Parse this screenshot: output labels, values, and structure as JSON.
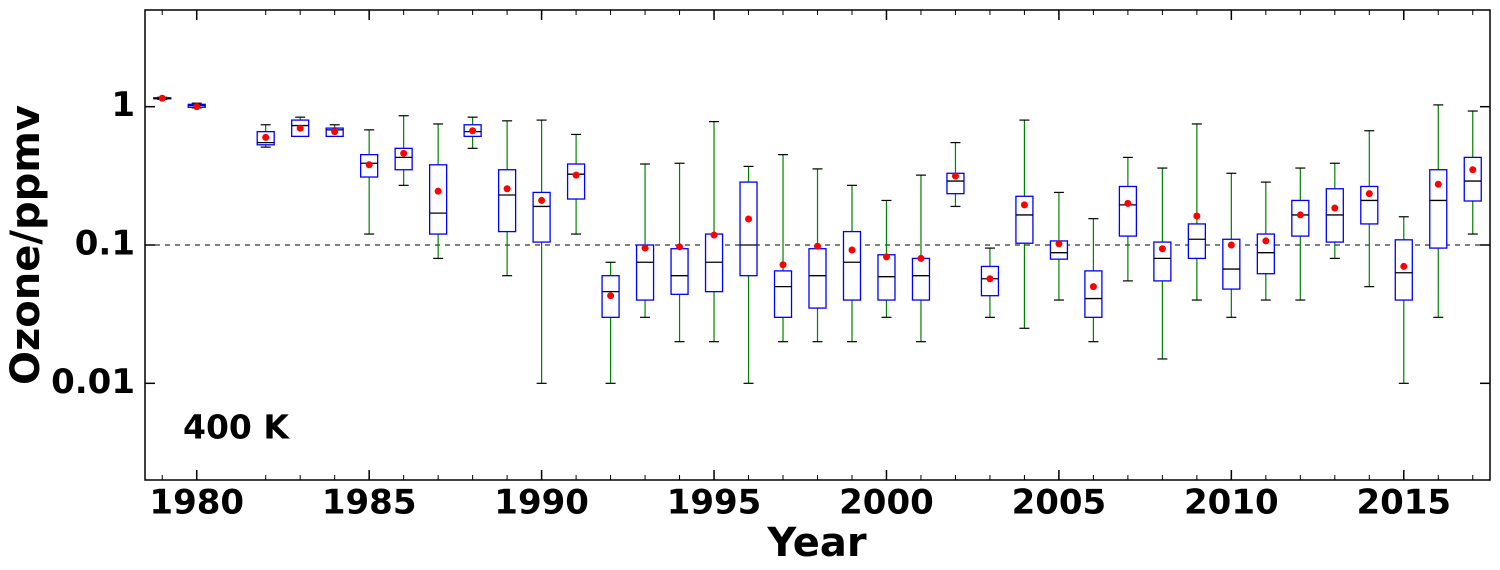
{
  "chart_data": {
    "type": "box",
    "x_label": "Year",
    "y_label": "Ozone/ppmv",
    "annotation": "400 K",
    "log_y": true,
    "xlim": [
      1978.5,
      2017.5
    ],
    "ylim": [
      0.002,
      5
    ],
    "xticks": [
      1980,
      1985,
      1990,
      1995,
      2000,
      2005,
      2010,
      2015
    ],
    "yticks": [
      0.01,
      0.1,
      1
    ],
    "reference_line": 0.1,
    "box_color": "#0000ff",
    "whisker_color": "#008000",
    "cap_color": "#000000",
    "median_color": "#000000",
    "mean_color": "#ff0000",
    "x": [
      1979,
      1980,
      1982,
      1983,
      1984,
      1985,
      1986,
      1987,
      1988,
      1989,
      1990,
      1991,
      1992,
      1993,
      1994,
      1995,
      1996,
      1997,
      1998,
      1999,
      2000,
      2001,
      2002,
      2003,
      2004,
      2005,
      2006,
      2007,
      2008,
      2009,
      2010,
      2011,
      2012,
      2013,
      2014,
      2015,
      2016,
      2017
    ],
    "whisker_low": [
      1.13,
      0.98,
      0.51,
      0.61,
      0.61,
      0.12,
      0.27,
      0.08,
      0.5,
      0.06,
      0.01,
      0.12,
      0.01,
      0.03,
      0.02,
      0.02,
      0.01,
      0.02,
      0.02,
      0.02,
      0.03,
      0.02,
      0.19,
      0.03,
      0.025,
      0.04,
      0.02,
      0.055,
      0.015,
      0.04,
      0.03,
      0.04,
      0.04,
      0.08,
      0.05,
      0.01,
      0.03,
      0.12
    ],
    "q1": [
      1.14,
      0.99,
      0.53,
      0.61,
      0.61,
      0.31,
      0.35,
      0.12,
      0.61,
      0.125,
      0.105,
      0.215,
      0.03,
      0.04,
      0.044,
      0.046,
      0.06,
      0.03,
      0.035,
      0.04,
      0.04,
      0.04,
      0.235,
      0.043,
      0.103,
      0.079,
      0.03,
      0.116,
      0.055,
      0.08,
      0.048,
      0.062,
      0.116,
      0.105,
      0.142,
      0.04,
      0.095,
      0.208
    ],
    "median": [
      1.15,
      1.02,
      0.55,
      0.73,
      0.68,
      0.39,
      0.43,
      0.17,
      0.66,
      0.23,
      0.19,
      0.325,
      0.046,
      0.075,
      0.06,
      0.075,
      0.1,
      0.05,
      0.06,
      0.075,
      0.059,
      0.06,
      0.29,
      0.057,
      0.165,
      0.088,
      0.041,
      0.195,
      0.08,
      0.11,
      0.067,
      0.088,
      0.165,
      0.165,
      0.21,
      0.063,
      0.21,
      0.29
    ],
    "q3": [
      1.16,
      1.04,
      0.66,
      0.8,
      0.7,
      0.45,
      0.5,
      0.38,
      0.74,
      0.35,
      0.24,
      0.385,
      0.06,
      0.1,
      0.094,
      0.12,
      0.285,
      0.065,
      0.094,
      0.125,
      0.085,
      0.08,
      0.33,
      0.07,
      0.225,
      0.107,
      0.065,
      0.265,
      0.105,
      0.142,
      0.11,
      0.12,
      0.21,
      0.255,
      0.265,
      0.109,
      0.35,
      0.43
    ],
    "whisker_high": [
      1.17,
      1.06,
      0.74,
      0.84,
      0.74,
      0.68,
      0.86,
      0.75,
      0.84,
      0.79,
      0.8,
      0.63,
      0.075,
      0.385,
      0.39,
      0.78,
      0.37,
      0.45,
      0.355,
      0.27,
      0.21,
      0.32,
      0.55,
      0.095,
      0.8,
      0.24,
      0.155,
      0.43,
      0.36,
      0.75,
      0.33,
      0.285,
      0.36,
      0.39,
      0.67,
      0.16,
      1.03,
      0.93
    ],
    "mean": [
      1.15,
      1.0,
      0.6,
      0.7,
      0.66,
      0.38,
      0.46,
      0.245,
      0.67,
      0.255,
      0.21,
      0.32,
      0.043,
      0.095,
      0.097,
      0.118,
      0.154,
      0.072,
      0.098,
      0.092,
      0.082,
      0.08,
      0.315,
      0.057,
      0.195,
      0.102,
      0.05,
      0.2,
      0.094,
      0.162,
      0.1,
      0.107,
      0.165,
      0.185,
      0.235,
      0.07,
      0.275,
      0.35
    ]
  }
}
